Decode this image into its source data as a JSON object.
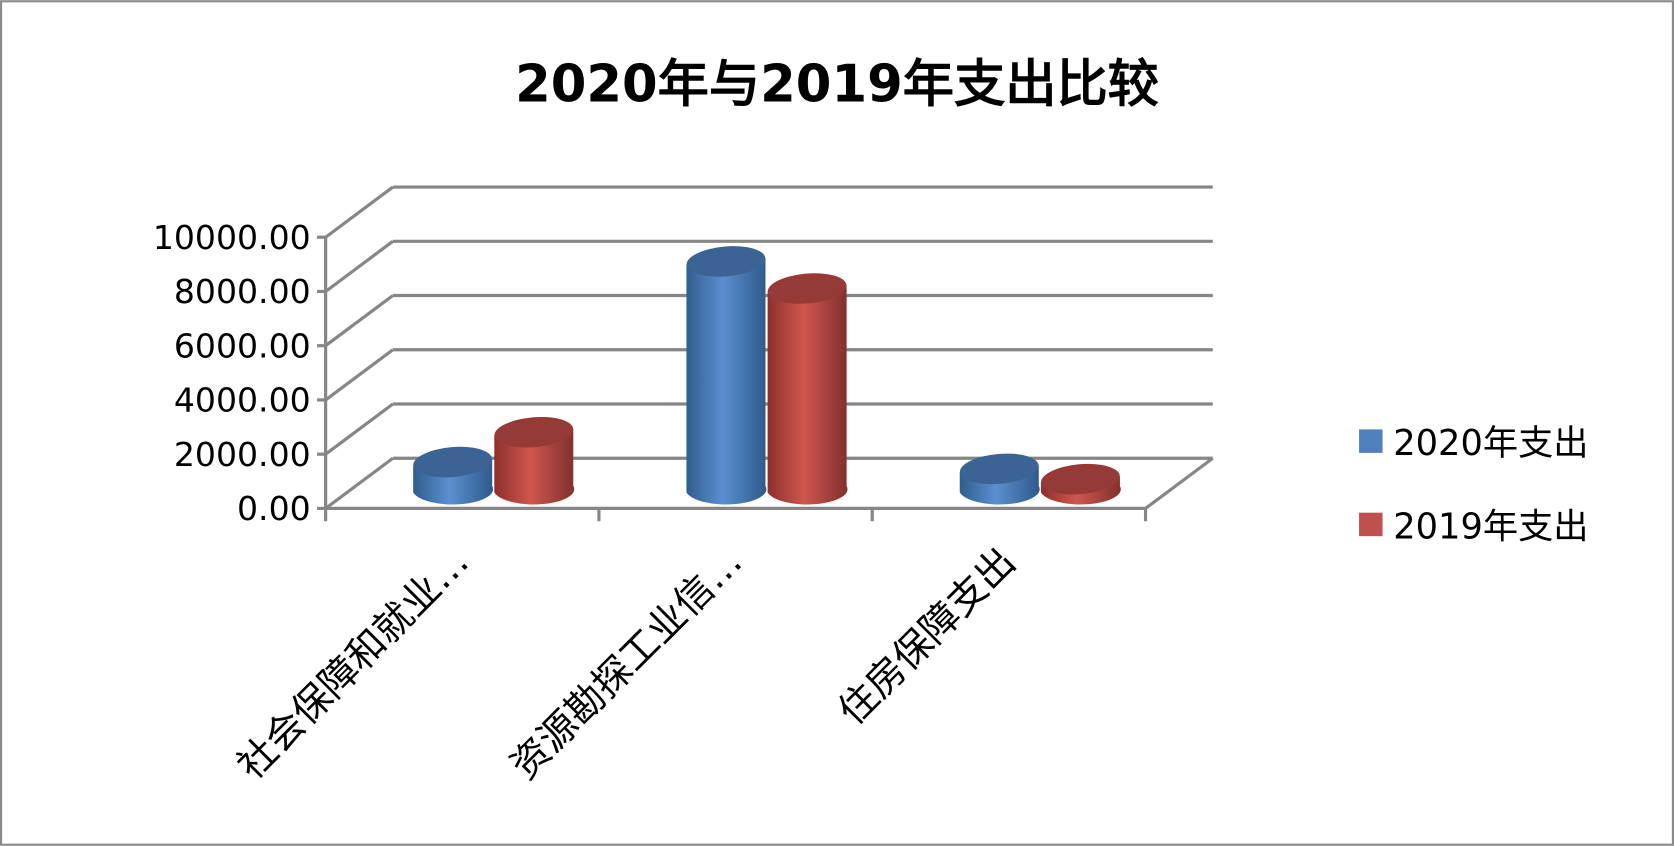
{
  "chart_data": {
    "type": "bar",
    "style": "3d-cylinder",
    "title": "2020年与2019年支出比较",
    "categories": [
      "社会保障和就业…",
      "资源勘探工业信…",
      "住房保障支出"
    ],
    "series": [
      {
        "name": "2020年支出",
        "color": "#4f81bd",
        "values": [
          1000,
          8400,
          750
        ]
      },
      {
        "name": "2019年支出",
        "color": "#c0504d",
        "values": [
          2100,
          7400,
          370
        ]
      }
    ],
    "yticks": [
      "0.00",
      "2000.00",
      "4000.00",
      "6000.00",
      "8000.00",
      "10000.00"
    ],
    "ylim": [
      0,
      10000
    ],
    "grid": true,
    "legend": "right"
  }
}
